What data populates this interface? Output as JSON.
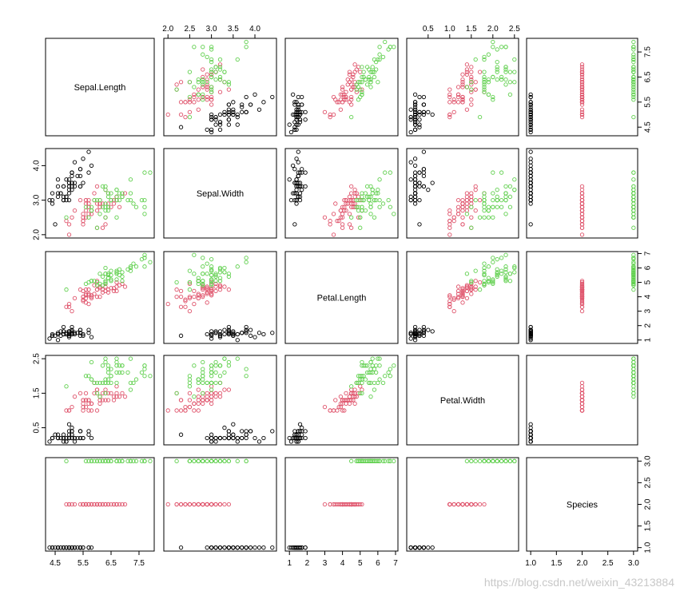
{
  "chart_data": {
    "type": "scatter",
    "title": "",
    "variables": [
      "Sepal.Length",
      "Sepal.Width",
      "Petal.Length",
      "Petal.Width",
      "Species"
    ],
    "ranges": {
      "Sepal.Length": [
        4.3,
        7.9
      ],
      "Sepal.Width": [
        2.0,
        4.4
      ],
      "Petal.Length": [
        1.0,
        6.9
      ],
      "Petal.Width": [
        0.1,
        2.5
      ],
      "Species": [
        1,
        3
      ]
    },
    "ticks": {
      "Sepal.Length": [
        "4.5",
        "5.5",
        "6.5",
        "7.5"
      ],
      "Sepal.Width": [
        "2.0",
        "2.5",
        "3.0",
        "3.5",
        "4.0"
      ],
      "Petal.Length": [
        "1",
        "2",
        "3",
        "4",
        "5",
        "6",
        "7"
      ],
      "Petal.Width": [
        "0.5",
        "1.0",
        "1.5",
        "2.0",
        "2.5"
      ],
      "Species": [
        "1.0",
        "1.5",
        "2.0",
        "2.5",
        "3.0"
      ]
    },
    "alt_ticks": {
      "Sepal.Width": [
        "2.0",
        "3.0",
        "4.0"
      ],
      "Petal.Width": [
        "0.5",
        "1.5",
        "2.5"
      ]
    },
    "series_colors": {
      "setosa": "#000000",
      "versicolor": "#DF536B",
      "virginica": "#61D04F"
    },
    "observations": [
      [
        5.1,
        3.5,
        1.4,
        0.2,
        1
      ],
      [
        4.9,
        3.0,
        1.4,
        0.2,
        1
      ],
      [
        4.7,
        3.2,
        1.3,
        0.2,
        1
      ],
      [
        4.6,
        3.1,
        1.5,
        0.2,
        1
      ],
      [
        5.0,
        3.6,
        1.4,
        0.2,
        1
      ],
      [
        5.4,
        3.9,
        1.7,
        0.4,
        1
      ],
      [
        4.6,
        3.4,
        1.4,
        0.3,
        1
      ],
      [
        5.0,
        3.4,
        1.5,
        0.2,
        1
      ],
      [
        4.4,
        2.9,
        1.4,
        0.2,
        1
      ],
      [
        4.9,
        3.1,
        1.5,
        0.1,
        1
      ],
      [
        5.4,
        3.7,
        1.5,
        0.2,
        1
      ],
      [
        4.8,
        3.4,
        1.6,
        0.2,
        1
      ],
      [
        4.8,
        3.0,
        1.4,
        0.1,
        1
      ],
      [
        4.3,
        3.0,
        1.1,
        0.1,
        1
      ],
      [
        5.8,
        4.0,
        1.2,
        0.2,
        1
      ],
      [
        5.7,
        4.4,
        1.5,
        0.4,
        1
      ],
      [
        5.4,
        3.9,
        1.3,
        0.4,
        1
      ],
      [
        5.1,
        3.5,
        1.4,
        0.3,
        1
      ],
      [
        5.7,
        3.8,
        1.7,
        0.3,
        1
      ],
      [
        5.1,
        3.8,
        1.5,
        0.3,
        1
      ],
      [
        5.4,
        3.4,
        1.7,
        0.2,
        1
      ],
      [
        5.1,
        3.7,
        1.5,
        0.4,
        1
      ],
      [
        4.6,
        3.6,
        1.0,
        0.2,
        1
      ],
      [
        5.1,
        3.3,
        1.7,
        0.5,
        1
      ],
      [
        4.8,
        3.4,
        1.9,
        0.2,
        1
      ],
      [
        5.0,
        3.0,
        1.6,
        0.2,
        1
      ],
      [
        5.0,
        3.4,
        1.6,
        0.4,
        1
      ],
      [
        5.2,
        3.5,
        1.5,
        0.2,
        1
      ],
      [
        5.2,
        3.4,
        1.4,
        0.2,
        1
      ],
      [
        4.7,
        3.2,
        1.6,
        0.2,
        1
      ],
      [
        4.8,
        3.1,
        1.6,
        0.2,
        1
      ],
      [
        5.4,
        3.4,
        1.5,
        0.4,
        1
      ],
      [
        5.2,
        4.1,
        1.5,
        0.1,
        1
      ],
      [
        5.5,
        4.2,
        1.4,
        0.2,
        1
      ],
      [
        4.9,
        3.1,
        1.5,
        0.2,
        1
      ],
      [
        5.0,
        3.2,
        1.2,
        0.2,
        1
      ],
      [
        5.5,
        3.5,
        1.3,
        0.2,
        1
      ],
      [
        4.9,
        3.6,
        1.4,
        0.1,
        1
      ],
      [
        4.4,
        3.0,
        1.3,
        0.2,
        1
      ],
      [
        5.1,
        3.4,
        1.5,
        0.2,
        1
      ],
      [
        5.0,
        3.5,
        1.3,
        0.3,
        1
      ],
      [
        4.5,
        2.3,
        1.3,
        0.3,
        1
      ],
      [
        4.4,
        3.2,
        1.3,
        0.2,
        1
      ],
      [
        5.0,
        3.5,
        1.6,
        0.6,
        1
      ],
      [
        5.1,
        3.8,
        1.9,
        0.4,
        1
      ],
      [
        4.8,
        3.0,
        1.4,
        0.3,
        1
      ],
      [
        5.1,
        3.8,
        1.6,
        0.2,
        1
      ],
      [
        4.6,
        3.2,
        1.4,
        0.2,
        1
      ],
      [
        5.3,
        3.7,
        1.5,
        0.2,
        1
      ],
      [
        5.0,
        3.3,
        1.4,
        0.2,
        1
      ],
      [
        7.0,
        3.2,
        4.7,
        1.4,
        2
      ],
      [
        6.4,
        3.2,
        4.5,
        1.5,
        2
      ],
      [
        6.9,
        3.1,
        4.9,
        1.5,
        2
      ],
      [
        5.5,
        2.3,
        4.0,
        1.3,
        2
      ],
      [
        6.5,
        2.8,
        4.6,
        1.5,
        2
      ],
      [
        5.7,
        2.8,
        4.5,
        1.3,
        2
      ],
      [
        6.3,
        3.3,
        4.7,
        1.6,
        2
      ],
      [
        4.9,
        2.4,
        3.3,
        1.0,
        2
      ],
      [
        6.6,
        2.9,
        4.6,
        1.3,
        2
      ],
      [
        5.2,
        2.7,
        3.9,
        1.4,
        2
      ],
      [
        5.0,
        2.0,
        3.5,
        1.0,
        2
      ],
      [
        5.9,
        3.0,
        4.2,
        1.5,
        2
      ],
      [
        6.0,
        2.2,
        4.0,
        1.0,
        2
      ],
      [
        6.1,
        2.9,
        4.7,
        1.4,
        2
      ],
      [
        5.6,
        2.9,
        3.6,
        1.3,
        2
      ],
      [
        6.7,
        3.1,
        4.4,
        1.4,
        2
      ],
      [
        5.6,
        3.0,
        4.5,
        1.5,
        2
      ],
      [
        5.8,
        2.7,
        4.1,
        1.0,
        2
      ],
      [
        6.2,
        2.2,
        4.5,
        1.5,
        2
      ],
      [
        5.6,
        2.5,
        3.9,
        1.1,
        2
      ],
      [
        5.9,
        3.2,
        4.8,
        1.8,
        2
      ],
      [
        6.1,
        2.8,
        4.0,
        1.3,
        2
      ],
      [
        6.3,
        2.5,
        4.9,
        1.5,
        2
      ],
      [
        6.1,
        2.8,
        4.7,
        1.2,
        2
      ],
      [
        6.4,
        2.9,
        4.3,
        1.3,
        2
      ],
      [
        6.6,
        3.0,
        4.4,
        1.4,
        2
      ],
      [
        6.8,
        2.8,
        4.8,
        1.4,
        2
      ],
      [
        6.7,
        3.0,
        5.0,
        1.7,
        2
      ],
      [
        6.0,
        2.9,
        4.5,
        1.5,
        2
      ],
      [
        5.7,
        2.6,
        3.5,
        1.0,
        2
      ],
      [
        5.5,
        2.4,
        3.8,
        1.1,
        2
      ],
      [
        5.5,
        2.4,
        3.7,
        1.0,
        2
      ],
      [
        5.8,
        2.7,
        3.9,
        1.2,
        2
      ],
      [
        6.0,
        2.7,
        5.1,
        1.6,
        2
      ],
      [
        5.4,
        3.0,
        4.5,
        1.5,
        2
      ],
      [
        6.0,
        3.4,
        4.5,
        1.6,
        2
      ],
      [
        6.7,
        3.1,
        4.7,
        1.5,
        2
      ],
      [
        6.3,
        2.3,
        4.4,
        1.3,
        2
      ],
      [
        5.6,
        3.0,
        4.1,
        1.3,
        2
      ],
      [
        5.5,
        2.5,
        4.0,
        1.3,
        2
      ],
      [
        5.5,
        2.6,
        4.4,
        1.2,
        2
      ],
      [
        6.1,
        3.0,
        4.6,
        1.4,
        2
      ],
      [
        5.8,
        2.6,
        4.0,
        1.2,
        2
      ],
      [
        5.0,
        2.3,
        3.3,
        1.0,
        2
      ],
      [
        5.6,
        2.7,
        4.2,
        1.3,
        2
      ],
      [
        5.7,
        3.0,
        4.2,
        1.2,
        2
      ],
      [
        5.7,
        2.9,
        4.2,
        1.3,
        2
      ],
      [
        6.2,
        2.9,
        4.3,
        1.3,
        2
      ],
      [
        5.1,
        2.5,
        3.0,
        1.1,
        2
      ],
      [
        5.7,
        2.8,
        4.1,
        1.3,
        2
      ],
      [
        6.3,
        3.3,
        6.0,
        2.5,
        3
      ],
      [
        5.8,
        2.7,
        5.1,
        1.9,
        3
      ],
      [
        7.1,
        3.0,
        5.9,
        2.1,
        3
      ],
      [
        6.3,
        2.9,
        5.6,
        1.8,
        3
      ],
      [
        6.5,
        3.0,
        5.8,
        2.2,
        3
      ],
      [
        7.6,
        3.0,
        6.6,
        2.1,
        3
      ],
      [
        4.9,
        2.5,
        4.5,
        1.7,
        3
      ],
      [
        7.3,
        2.9,
        6.3,
        1.8,
        3
      ],
      [
        6.7,
        2.5,
        5.8,
        1.8,
        3
      ],
      [
        7.2,
        3.6,
        6.1,
        2.5,
        3
      ],
      [
        6.5,
        3.2,
        5.1,
        2.0,
        3
      ],
      [
        6.4,
        2.7,
        5.3,
        1.9,
        3
      ],
      [
        6.8,
        3.0,
        5.5,
        2.1,
        3
      ],
      [
        5.7,
        2.5,
        5.0,
        2.0,
        3
      ],
      [
        5.8,
        2.8,
        5.1,
        2.4,
        3
      ],
      [
        6.4,
        3.2,
        5.3,
        2.3,
        3
      ],
      [
        6.5,
        3.0,
        5.5,
        1.8,
        3
      ],
      [
        7.7,
        3.8,
        6.7,
        2.2,
        3
      ],
      [
        7.7,
        2.6,
        6.9,
        2.3,
        3
      ],
      [
        6.0,
        2.2,
        5.0,
        1.5,
        3
      ],
      [
        6.9,
        3.2,
        5.7,
        2.3,
        3
      ],
      [
        5.6,
        2.8,
        4.9,
        2.0,
        3
      ],
      [
        7.7,
        2.8,
        6.7,
        2.0,
        3
      ],
      [
        6.3,
        2.7,
        4.9,
        1.8,
        3
      ],
      [
        6.7,
        3.3,
        5.7,
        2.1,
        3
      ],
      [
        7.2,
        3.2,
        6.0,
        1.8,
        3
      ],
      [
        6.2,
        2.8,
        4.8,
        1.8,
        3
      ],
      [
        6.1,
        3.0,
        4.9,
        1.8,
        3
      ],
      [
        6.4,
        2.8,
        5.6,
        2.1,
        3
      ],
      [
        7.2,
        3.0,
        5.8,
        1.6,
        3
      ],
      [
        7.4,
        2.8,
        6.1,
        1.9,
        3
      ],
      [
        7.9,
        3.8,
        6.4,
        2.0,
        3
      ],
      [
        6.4,
        2.8,
        5.6,
        2.2,
        3
      ],
      [
        6.3,
        2.8,
        5.1,
        1.5,
        3
      ],
      [
        6.1,
        2.6,
        5.6,
        1.4,
        3
      ],
      [
        7.7,
        3.0,
        6.1,
        2.3,
        3
      ],
      [
        6.3,
        3.4,
        5.6,
        2.4,
        3
      ],
      [
        6.4,
        3.1,
        5.5,
        1.8,
        3
      ],
      [
        6.0,
        3.0,
        4.8,
        1.8,
        3
      ],
      [
        6.9,
        3.1,
        5.4,
        2.1,
        3
      ],
      [
        6.7,
        3.1,
        5.6,
        2.4,
        3
      ],
      [
        6.9,
        3.1,
        5.1,
        2.3,
        3
      ],
      [
        5.8,
        2.7,
        5.1,
        1.9,
        3
      ],
      [
        6.8,
        3.2,
        5.9,
        2.3,
        3
      ],
      [
        6.7,
        3.3,
        5.7,
        2.5,
        3
      ],
      [
        6.7,
        3.0,
        5.2,
        2.3,
        3
      ],
      [
        6.3,
        2.5,
        5.0,
        1.9,
        3
      ],
      [
        6.5,
        3.0,
        5.2,
        2.0,
        3
      ],
      [
        6.2,
        3.4,
        5.4,
        2.3,
        3
      ],
      [
        5.9,
        3.0,
        5.1,
        1.8,
        3
      ]
    ]
  },
  "watermark": "https://blog.csdn.net/weixin_43213884"
}
